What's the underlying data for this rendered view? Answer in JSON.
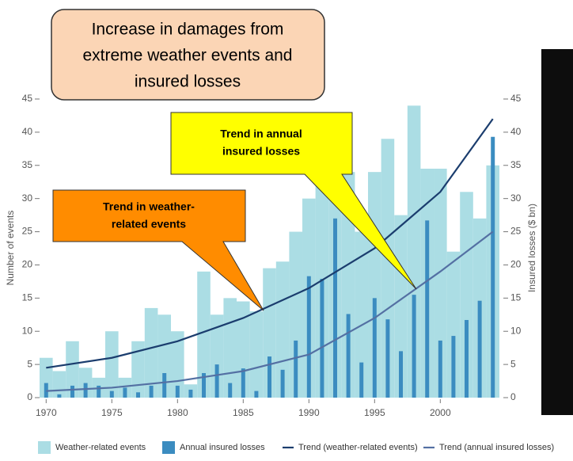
{
  "chart_data": {
    "type": "bar",
    "title_lines": [
      "Increase in damages from",
      "extreme weather events and",
      "insured losses"
    ],
    "y_label": "Number of events",
    "y2_label": "Insured losses ($ bn)",
    "x": [
      1970,
      1971,
      1972,
      1973,
      1974,
      1975,
      1976,
      1977,
      1978,
      1979,
      1980,
      1981,
      1982,
      1983,
      1984,
      1985,
      1986,
      1987,
      1988,
      1989,
      1990,
      1991,
      1992,
      1993,
      1994,
      1995,
      1996,
      1997,
      1998,
      1999,
      2000,
      2001,
      2002,
      2003,
      2004
    ],
    "xlim": [
      1969.5,
      2004.8
    ],
    "xticks": [
      1970,
      1975,
      1980,
      1985,
      1990,
      1995,
      2000
    ],
    "ylim": [
      0,
      45
    ],
    "yticks": [
      0,
      5,
      10,
      15,
      20,
      25,
      30,
      35,
      40,
      45
    ],
    "y2lim": [
      0,
      45
    ],
    "y2ticks": [
      0,
      5,
      10,
      15,
      20,
      25,
      30,
      35,
      40,
      45
    ],
    "series": [
      {
        "name": "Weather-related events",
        "type": "bar",
        "color": "#abdde4",
        "values": [
          6,
          4,
          8.5,
          4.5,
          3,
          10,
          3,
          8.5,
          13.5,
          12.5,
          10,
          2,
          19,
          12.5,
          15,
          14.5,
          13,
          19.5,
          20.5,
          25,
          30,
          36,
          36,
          34,
          25,
          34,
          39,
          27.5,
          44,
          34.5,
          34.5,
          22,
          31,
          27,
          35
        ]
      },
      {
        "name": "Annual insured losses",
        "type": "bar",
        "axis": "y2",
        "color": "#3b8cc0",
        "values": [
          2.2,
          0.5,
          1.8,
          2.2,
          1.8,
          1,
          1.5,
          0.8,
          1.8,
          3.7,
          1.8,
          1.2,
          3.7,
          5,
          2.2,
          4.4,
          1,
          6.2,
          4.2,
          8.6,
          18.3,
          17.9,
          27,
          12.6,
          5.3,
          15,
          11.8,
          7,
          15.5,
          26.7,
          8.6,
          9.3,
          11.7,
          14.6,
          39.3
        ]
      },
      {
        "name": "Trend (weather-related events)",
        "type": "line",
        "color": "#1b3d6e",
        "x": [
          1970,
          1975,
          1980,
          1985,
          1990,
          1995,
          2000,
          2004
        ],
        "values": [
          4.5,
          6,
          8.5,
          12,
          16.5,
          22.5,
          31,
          42
        ]
      },
      {
        "name": "Trend (annual insured losses)",
        "type": "line",
        "axis": "y2",
        "color": "#5470a3",
        "x": [
          1970,
          1975,
          1980,
          1985,
          1990,
          1995,
          2000,
          2004
        ],
        "values": [
          1,
          1.5,
          2.5,
          4,
          6.5,
          12,
          19,
          25
        ]
      }
    ],
    "annotations": [
      {
        "lines": [
          "Trend in weather-",
          "related events"
        ],
        "color": "#ff8c00"
      },
      {
        "lines": [
          "Trend in annual",
          "insured losses"
        ],
        "color": "#ffff00"
      }
    ]
  }
}
